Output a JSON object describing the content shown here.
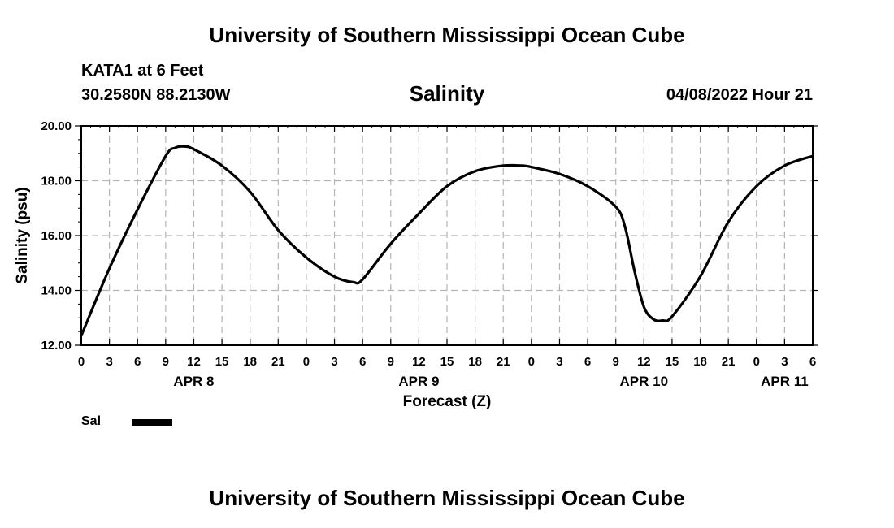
{
  "header": {
    "title_top": "University of Southern Mississippi Ocean Cube",
    "station": "KATA1 at 6 Feet",
    "coords": "30.2580N  88.2130W",
    "chart_title": "Salinity",
    "datetime": "04/08/2022 Hour 21",
    "title_bottom": "University of Southern Mississippi Ocean Cube"
  },
  "legend": {
    "label": "Sal",
    "color": "#000000"
  },
  "chart_data": {
    "type": "line",
    "title": "Salinity",
    "xlabel": "Forecast (Z)",
    "ylabel": "Salinity (psu)",
    "xlim_hours": [
      0,
      78
    ],
    "ylim": [
      12.0,
      20.0
    ],
    "yticks": [
      "12.00",
      "14.00",
      "16.00",
      "18.00",
      "20.00"
    ],
    "yticks_values": [
      12,
      14,
      16,
      18,
      20
    ],
    "xtick_labels": [
      "0",
      "3",
      "6",
      "9",
      "12",
      "15",
      "18",
      "21",
      "0",
      "3",
      "6",
      "9",
      "12",
      "15",
      "18",
      "21",
      "0",
      "3",
      "6",
      "9",
      "12",
      "15",
      "18",
      "21",
      "0",
      "3",
      "6"
    ],
    "xtick_hours": [
      0,
      3,
      6,
      9,
      12,
      15,
      18,
      21,
      24,
      27,
      30,
      33,
      36,
      39,
      42,
      45,
      48,
      51,
      54,
      57,
      60,
      63,
      66,
      69,
      72,
      75,
      78
    ],
    "day_labels": [
      {
        "label": "APR 8",
        "hour": 12
      },
      {
        "label": "APR 9",
        "hour": 36
      },
      {
        "label": "APR 10",
        "hour": 60
      },
      {
        "label": "APR 11",
        "hour": 75
      }
    ],
    "grid": true,
    "series": [
      {
        "name": "Sal",
        "color": "#000000",
        "hours": [
          0,
          3,
          6,
          9,
          10,
          11,
          12,
          15,
          18,
          21,
          24,
          27,
          29,
          30,
          33,
          36,
          39,
          42,
          45,
          47,
          48,
          51,
          54,
          57,
          58,
          59,
          60,
          61,
          62,
          63,
          66,
          69,
          72,
          75,
          78
        ],
        "values": [
          12.35,
          14.8,
          16.95,
          18.9,
          19.2,
          19.25,
          19.15,
          18.55,
          17.6,
          16.2,
          15.2,
          14.5,
          14.3,
          14.4,
          15.7,
          16.8,
          17.8,
          18.35,
          18.55,
          18.55,
          18.5,
          18.25,
          17.8,
          17.05,
          16.3,
          14.7,
          13.4,
          12.95,
          12.9,
          13.05,
          14.5,
          16.5,
          17.8,
          18.55,
          18.9
        ]
      }
    ]
  }
}
